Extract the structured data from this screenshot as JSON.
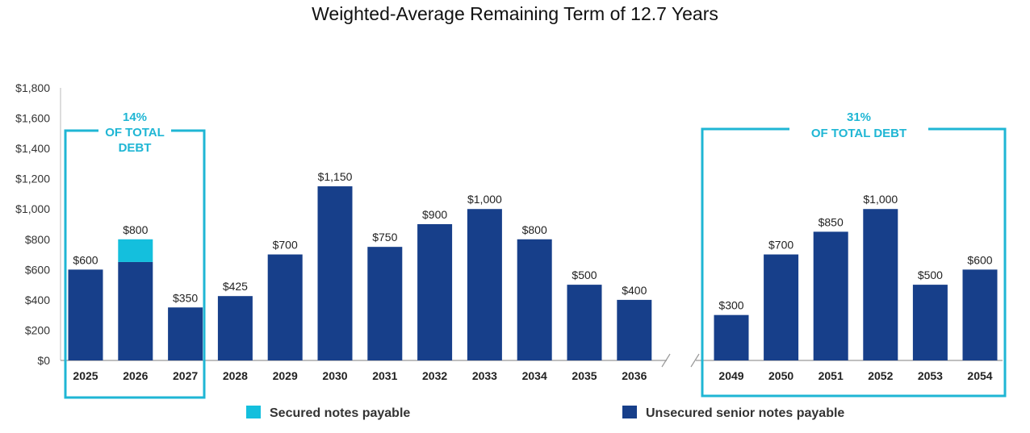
{
  "chart_data": {
    "type": "bar",
    "stacked": true,
    "title": "Weighted-Average Remaining Term of 12.7 Years",
    "xlabel": "",
    "ylabel": "",
    "ylim": [
      0,
      1800
    ],
    "yticks": [
      "$0",
      "$200",
      "$400",
      "$600",
      "$800",
      "$1,000",
      "$1,200",
      "$1,400",
      "$1,600",
      "$1,800"
    ],
    "ytick_values": [
      0,
      200,
      400,
      600,
      800,
      1000,
      1200,
      1400,
      1600,
      1800
    ],
    "categories": [
      "2025",
      "2026",
      "2027",
      "2028",
      "2029",
      "2030",
      "2031",
      "2032",
      "2033",
      "2034",
      "2035",
      "2036",
      "2049",
      "2050",
      "2051",
      "2052",
      "2053",
      "2054"
    ],
    "series": [
      {
        "name": "Unsecured senior notes payable",
        "color": "#173f8a",
        "values": [
          600,
          650,
          350,
          425,
          700,
          1150,
          750,
          900,
          1000,
          800,
          500,
          400,
          300,
          700,
          850,
          1000,
          500,
          600
        ]
      },
      {
        "name": "Secured notes payable",
        "color": "#14bfdd",
        "values": [
          0,
          150,
          0,
          0,
          0,
          0,
          0,
          0,
          0,
          0,
          0,
          0,
          0,
          0,
          0,
          0,
          0,
          0
        ]
      }
    ],
    "data_labels": [
      "$600",
      "$800",
      "$350",
      "$425",
      "$700",
      "$1,150",
      "$750",
      "$900",
      "$1,000",
      "$800",
      "$500",
      "$400",
      "$300",
      "$700",
      "$850",
      "$1,000",
      "$500",
      "$600"
    ],
    "axis_break": "between 2036 and 2049",
    "grid": false,
    "legend_position": "bottom",
    "annotations": [
      {
        "line1": "14%",
        "line2": "OF TOTAL",
        "line3": "DEBT",
        "covers": [
          "2025",
          "2026",
          "2027"
        ]
      },
      {
        "line1": "31%",
        "line2": "OF TOTAL DEBT",
        "line3": "",
        "covers": [
          "2049",
          "2050",
          "2051",
          "2052",
          "2053",
          "2054"
        ]
      }
    ],
    "accent_color": "#1fb6d4"
  },
  "legend": [
    {
      "label": "Secured notes payable",
      "color": "#14bfdd"
    },
    {
      "label": "Unsecured senior notes payable",
      "color": "#173f8a"
    }
  ]
}
